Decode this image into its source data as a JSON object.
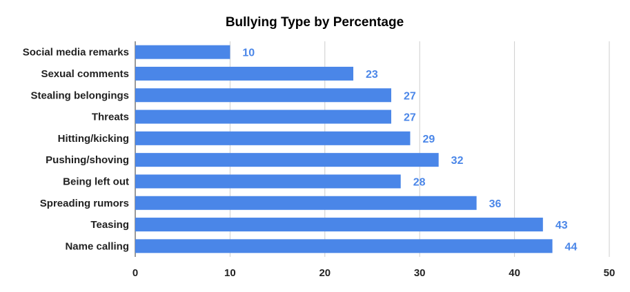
{
  "chart_data": {
    "type": "bar",
    "orientation": "horizontal",
    "title": "Bullying Type by Percentage",
    "xlabel": "",
    "ylabel": "",
    "categories": [
      "Social media remarks",
      "Sexual comments",
      "Stealing belongings",
      "Threats",
      "Hitting/kicking",
      "Pushing/shoving",
      "Being left out",
      "Spreading rumors",
      "Teasing",
      "Name calling"
    ],
    "values": [
      10,
      23,
      27,
      27,
      29,
      32,
      28,
      36,
      43,
      44
    ],
    "xlim": [
      0,
      50
    ],
    "xticks": [
      "0",
      "10",
      "20",
      "30",
      "40",
      "50"
    ],
    "grid": true,
    "legend": "none",
    "bar_color": "#4a86e8",
    "label_color": "#4a86e8"
  }
}
